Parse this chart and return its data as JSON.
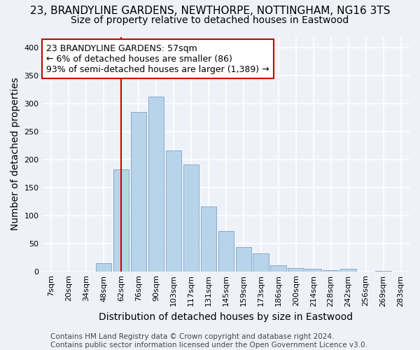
{
  "title": "23, BRANDYLINE GARDENS, NEWTHORPE, NOTTINGHAM, NG16 3TS",
  "subtitle": "Size of property relative to detached houses in Eastwood",
  "xlabel": "Distribution of detached houses by size in Eastwood",
  "ylabel": "Number of detached properties",
  "footer_line1": "Contains HM Land Registry data © Crown copyright and database right 2024.",
  "footer_line2": "Contains public sector information licensed under the Open Government Licence v3.0.",
  "bar_labels": [
    "7sqm",
    "20sqm",
    "34sqm",
    "48sqm",
    "62sqm",
    "76sqm",
    "90sqm",
    "103sqm",
    "117sqm",
    "131sqm",
    "145sqm",
    "159sqm",
    "173sqm",
    "186sqm",
    "200sqm",
    "214sqm",
    "228sqm",
    "242sqm",
    "256sqm",
    "269sqm",
    "283sqm"
  ],
  "bar_values": [
    0,
    0,
    0,
    15,
    183,
    285,
    313,
    217,
    191,
    116,
    72,
    44,
    32,
    11,
    6,
    4,
    2,
    5,
    0,
    1,
    0
  ],
  "bar_color": "#b8d4ea",
  "bar_edge_color": "#88aacc",
  "marker_x_index": 4,
  "marker_line_color": "#cc0000",
  "annotation_text_line1": "23 BRANDYLINE GARDENS: 57sqm",
  "annotation_text_line2": "← 6% of detached houses are smaller (86)",
  "annotation_text_line3": "93% of semi-detached houses are larger (1,389) →",
  "annotation_box_color": "#ffffff",
  "annotation_box_edge_color": "#cc0000",
  "ylim": [
    0,
    420
  ],
  "xlim_left": -0.5,
  "xlim_right": 20.5,
  "bg_color": "#eef2f8",
  "plot_bg_color": "#eef2f8",
  "grid_color": "#ffffff",
  "title_fontsize": 11,
  "subtitle_fontsize": 10,
  "axis_label_fontsize": 10,
  "tick_fontsize": 8,
  "annotation_fontsize": 9,
  "footer_fontsize": 7.5
}
